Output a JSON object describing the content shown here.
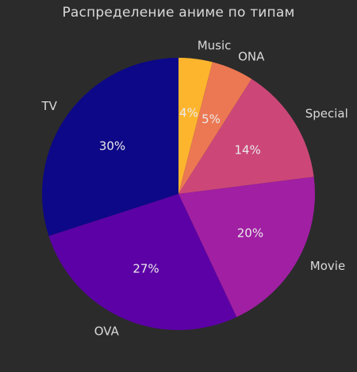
{
  "chart_data": {
    "type": "pie",
    "title": "Распределение аниме по типам",
    "start_angle_deg": 90,
    "direction": "clockwise_from_top",
    "slices": [
      {
        "label": "Music",
        "value": 4,
        "pct_text": "4%",
        "color": "#fdb52e"
      },
      {
        "label": "ONA",
        "value": 5,
        "pct_text": "5%",
        "color": "#ec7853"
      },
      {
        "label": "Special",
        "value": 14,
        "pct_text": "14%",
        "color": "#cc4778"
      },
      {
        "label": "Movie",
        "value": 20,
        "pct_text": "20%",
        "color": "#a01fa3"
      },
      {
        "label": "OVA",
        "value": 27,
        "pct_text": "27%",
        "color": "#5c01a6"
      },
      {
        "label": "TV",
        "value": 30,
        "pct_text": "30%",
        "color": "#0d0887"
      }
    ]
  },
  "theme": {
    "background": "#2b2b2b",
    "text_color": "#d9d9d9"
  }
}
